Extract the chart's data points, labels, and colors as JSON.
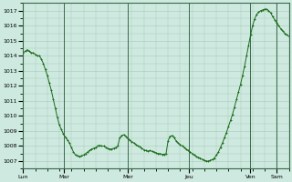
{
  "background_color": "#ceeae0",
  "grid_color": "#aac8b8",
  "line_color": "#1a6b1a",
  "marker_color": "#1a6b1a",
  "ylim": [
    1006.5,
    1017.5
  ],
  "yticks": [
    1007,
    1008,
    1009,
    1010,
    1011,
    1012,
    1013,
    1014,
    1015,
    1016,
    1017
  ],
  "xtick_labels": [
    "Lun",
    "Mar",
    "Mer",
    "Jeu",
    "Ven",
    "Sam"
  ],
  "figsize": [
    3.2,
    2.0
  ],
  "dpi": 100,
  "pressure_data": [
    1014.2,
    1014.3,
    1014.4,
    1014.3,
    1014.2,
    1014.2,
    1014.1,
    1014.0,
    1014.0,
    1013.8,
    1013.5,
    1013.1,
    1012.7,
    1012.2,
    1011.7,
    1011.1,
    1010.5,
    1009.9,
    1009.4,
    1009.1,
    1008.8,
    1008.6,
    1008.4,
    1008.2,
    1007.9,
    1007.6,
    1007.4,
    1007.35,
    1007.3,
    1007.35,
    1007.4,
    1007.5,
    1007.6,
    1007.7,
    1007.8,
    1007.85,
    1007.9,
    1008.0,
    1008.05,
    1008.0,
    1008.0,
    1007.9,
    1007.85,
    1007.8,
    1007.8,
    1007.85,
    1007.9,
    1008.0,
    1008.55,
    1008.7,
    1008.75,
    1008.65,
    1008.5,
    1008.4,
    1008.3,
    1008.2,
    1008.1,
    1008.0,
    1007.95,
    1007.85,
    1007.75,
    1007.7,
    1007.65,
    1007.7,
    1007.65,
    1007.6,
    1007.55,
    1007.5,
    1007.5,
    1007.45,
    1007.45,
    1007.5,
    1008.35,
    1008.65,
    1008.7,
    1008.55,
    1008.35,
    1008.2,
    1008.1,
    1008.0,
    1007.9,
    1007.8,
    1007.7,
    1007.6,
    1007.5,
    1007.4,
    1007.3,
    1007.25,
    1007.2,
    1007.1,
    1007.05,
    1007.0,
    1007.0,
    1007.05,
    1007.1,
    1007.2,
    1007.4,
    1007.6,
    1007.9,
    1008.2,
    1008.55,
    1008.9,
    1009.3,
    1009.7,
    1010.1,
    1010.6,
    1011.1,
    1011.6,
    1012.1,
    1012.7,
    1013.3,
    1014.0,
    1014.7,
    1015.4,
    1016.0,
    1016.45,
    1016.75,
    1016.9,
    1017.0,
    1017.05,
    1017.1,
    1017.1,
    1017.0,
    1016.85,
    1016.6,
    1016.4,
    1016.2,
    1016.0,
    1015.8,
    1015.65,
    1015.5,
    1015.4,
    1015.3
  ]
}
